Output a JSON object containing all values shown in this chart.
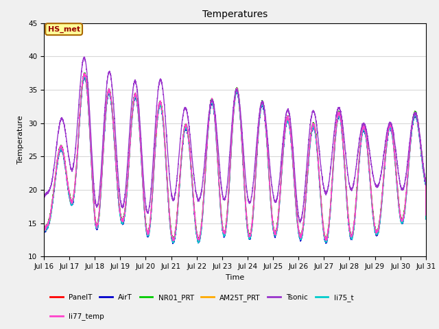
{
  "title": "Temperatures",
  "xlabel": "Time",
  "ylabel": "Temperature",
  "ylim": [
    10,
    45
  ],
  "n_days": 15,
  "xtick_labels": [
    "Jul 16",
    "Jul 17",
    "Jul 18",
    "Jul 19",
    "Jul 20",
    "Jul 21",
    "Jul 22",
    "Jul 23",
    "Jul 24",
    "Jul 25",
    "Jul 26",
    "Jul 27",
    "Jul 28",
    "Jul 29",
    "Jul 30",
    "Jul 31"
  ],
  "fig_bg_color": "#f0f0f0",
  "plot_bg_color": "#ffffff",
  "grid_color": "#d8d8d8",
  "series": {
    "PanelT": {
      "color": "#ff0000",
      "lw": 1.0
    },
    "AirT": {
      "color": "#0000cc",
      "lw": 1.0
    },
    "NR01_PRT": {
      "color": "#00cc00",
      "lw": 1.0
    },
    "AM25T_PRT": {
      "color": "#ffaa00",
      "lw": 1.0
    },
    "Tsonic": {
      "color": "#9933cc",
      "lw": 1.0
    },
    "li75_t": {
      "color": "#00cccc",
      "lw": 1.0
    },
    "li77_temp": {
      "color": "#ff44cc",
      "lw": 1.0
    }
  },
  "annotation_text": "HS_met",
  "annotation_bg": "#ffff99",
  "annotation_border": "#aa6600",
  "annotation_text_color": "#990000",
  "day_peaks_base": [
    14.5,
    33.5,
    40.0,
    31.0,
    36.5,
    30.5,
    29.0,
    36.5,
    34.0,
    32.5,
    29.5,
    30.0,
    32.5,
    27.0,
    31.5,
    31.5
  ],
  "day_troughs_base": [
    14.0,
    18.5,
    14.5,
    15.5,
    13.5,
    12.5,
    12.5,
    13.5,
    13.0,
    13.5,
    13.0,
    12.5,
    13.0,
    13.5,
    15.0,
    20.5
  ],
  "tsonic_peak_extra": [
    0,
    6,
    0,
    5,
    0,
    6,
    0,
    0,
    0,
    0,
    2,
    2,
    0,
    1,
    0,
    0
  ],
  "tsonic_trough_extra": [
    5,
    5,
    3,
    2,
    3,
    6,
    6,
    5,
    5,
    5,
    2,
    7,
    7,
    7,
    5,
    0
  ],
  "legend_row1": [
    "PanelT",
    "AirT",
    "NR01_PRT",
    "AM25T_PRT",
    "Tsonic",
    "li75_t"
  ],
  "legend_row2": [
    "li77_temp"
  ]
}
